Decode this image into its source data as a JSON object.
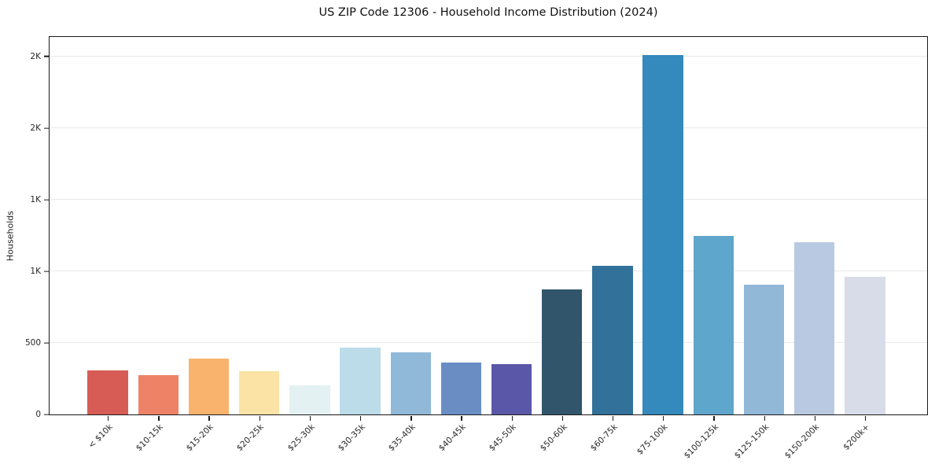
{
  "title": "US ZIP Code 12306 - Household Income Distribution (2024)",
  "chart_data": {
    "type": "bar",
    "title": "US ZIP Code 12306 - Household Income Distribution (2024)",
    "xlabel": "",
    "ylabel": "Households",
    "categories": [
      "< $10k",
      "$10-15k",
      "$15-20k",
      "$20-25k",
      "$25-30k",
      "$30-35k",
      "$35-40k",
      "$40-45k",
      "$45-50k",
      "$50-60k",
      "$60-75k",
      "$75-100k",
      "$100-125k",
      "$125-150k",
      "$150-200k",
      "$200k+"
    ],
    "values": [
      310,
      275,
      390,
      300,
      205,
      465,
      435,
      365,
      350,
      875,
      1040,
      2510,
      1245,
      905,
      1205,
      960
    ],
    "bar_colors": [
      "#d85c56",
      "#ee8266",
      "#f9b36c",
      "#fbe3a6",
      "#e4f1f2",
      "#bcdcea",
      "#90b9d9",
      "#6a8ec4",
      "#5a57a9",
      "#31566c",
      "#32729a",
      "#3489bd",
      "#5ea6cc",
      "#92b8d8",
      "#b9c9e1",
      "#d8dbe8"
    ],
    "ylim": [
      0,
      2636
    ],
    "yticks": [
      {
        "value": 0,
        "label": "0"
      },
      {
        "value": 500,
        "label": "500"
      },
      {
        "value": 1000,
        "label": "1K"
      },
      {
        "value": 1500,
        "label": "1K"
      },
      {
        "value": 2000,
        "label": "2K"
      },
      {
        "value": 2500,
        "label": "2K"
      }
    ],
    "grid": "horizontal",
    "legend": "none",
    "colors": {
      "frame": "#1a1a1a",
      "gridline": "#e9e9ed",
      "background": "#ffffff",
      "tick_text": "#262626"
    }
  }
}
